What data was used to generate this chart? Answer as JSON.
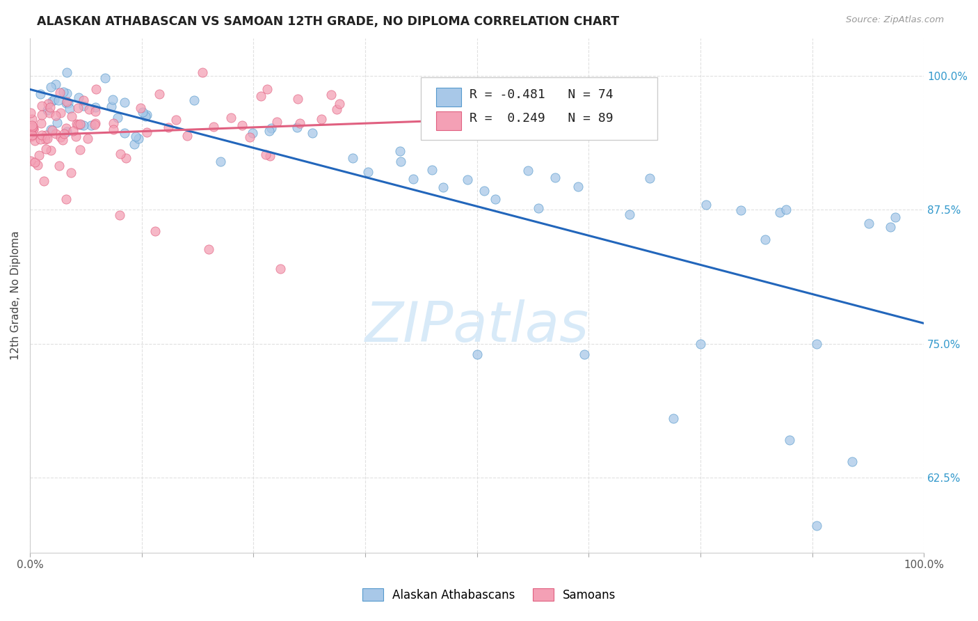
{
  "title": "ALASKAN ATHABASCAN VS SAMOAN 12TH GRADE, NO DIPLOMA CORRELATION CHART",
  "source": "Source: ZipAtlas.com",
  "ylabel": "12th Grade, No Diploma",
  "legend_label1": "Alaskan Athabascans",
  "legend_label2": "Samoans",
  "r1": -0.481,
  "n1": 74,
  "r2": 0.249,
  "n2": 89,
  "color_blue": "#a8c8e8",
  "color_blue_edge": "#5599cc",
  "color_blue_line": "#2266bb",
  "color_pink": "#f4a0b5",
  "color_pink_edge": "#e06080",
  "color_pink_line": "#e06080",
  "xlim": [
    0.0,
    1.0
  ],
  "ylim": [
    0.555,
    1.035
  ],
  "yticks": [
    0.625,
    0.75,
    0.875,
    1.0
  ],
  "ytick_labels": [
    "62.5%",
    "75.0%",
    "87.5%",
    "100.0%"
  ],
  "grid_color": "#dddddd",
  "watermark_color": "#d8eaf8",
  "bg_color": "#ffffff"
}
